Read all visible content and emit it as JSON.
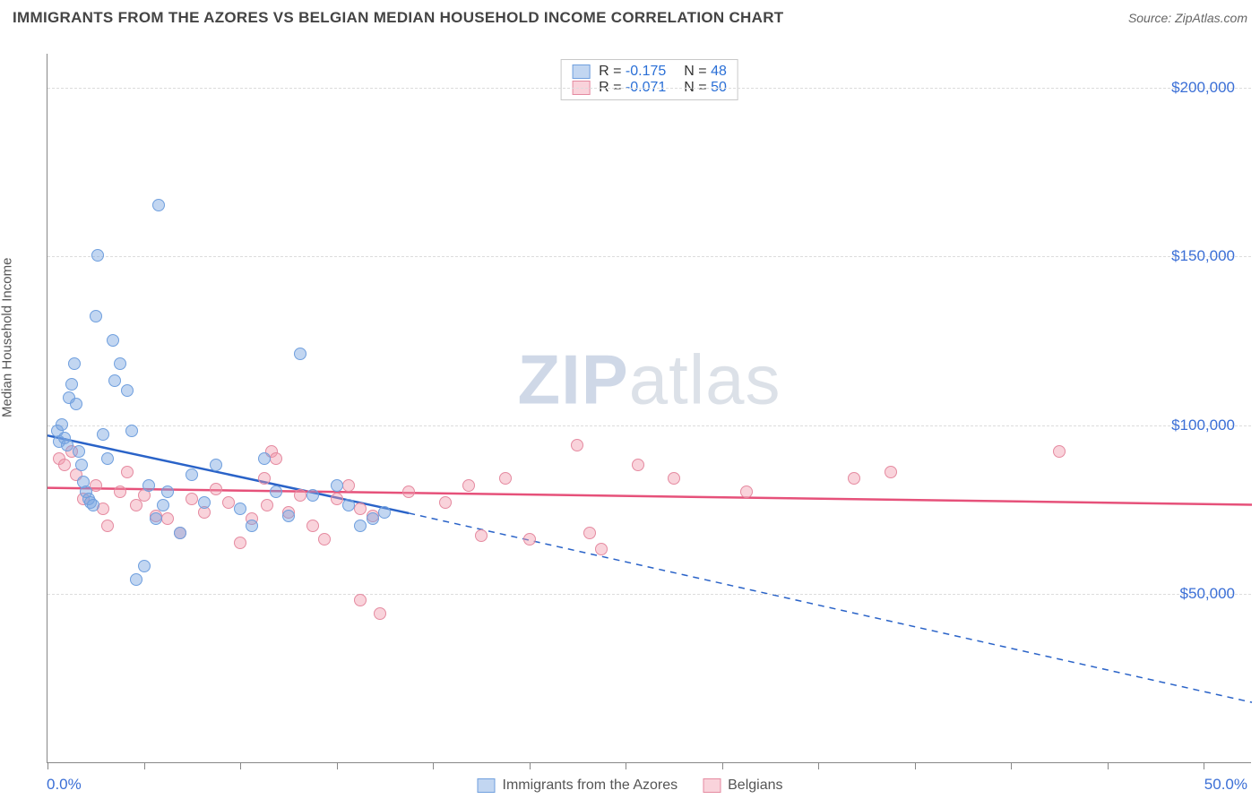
{
  "title": "IMMIGRANTS FROM THE AZORES VS BELGIAN MEDIAN HOUSEHOLD INCOME CORRELATION CHART",
  "source_label": "Source: ZipAtlas.com",
  "watermark": {
    "bold": "ZIP",
    "light": "atlas"
  },
  "chart": {
    "type": "scatter",
    "ylabel": "Median Household Income",
    "xlim": [
      0,
      50
    ],
    "ylim": [
      0,
      210000
    ],
    "x_start_label": "0.0%",
    "x_end_label": "50.0%",
    "x_ticks_pct": [
      0,
      4,
      8,
      12,
      16,
      20,
      24,
      28,
      32,
      36,
      40,
      44,
      48
    ],
    "y_gridlines": [
      50000,
      100000,
      150000,
      200000
    ],
    "y_tick_labels": [
      "$50,000",
      "$100,000",
      "$150,000",
      "$200,000"
    ],
    "background_color": "#ffffff",
    "grid_color": "#dcdcdc",
    "axis_color": "#888888",
    "tick_label_color": "#3b6fd6",
    "series": [
      {
        "key": "azores",
        "label": "Immigrants from the Azores",
        "fill": "rgba(120,165,225,0.45)",
        "stroke": "#6f9fde",
        "trend_color": "#2a63c8",
        "R": "-0.175",
        "N": "48",
        "trend": {
          "x1": 0,
          "y1": 97000,
          "x2": 15,
          "y2": 74000,
          "dash_to_x": 50,
          "dash_to_y": 18000
        },
        "points": [
          [
            0.4,
            98000
          ],
          [
            0.5,
            95000
          ],
          [
            0.6,
            100000
          ],
          [
            0.7,
            96000
          ],
          [
            0.8,
            94000
          ],
          [
            0.9,
            108000
          ],
          [
            1.0,
            112000
          ],
          [
            1.1,
            118000
          ],
          [
            1.2,
            106000
          ],
          [
            1.3,
            92000
          ],
          [
            1.4,
            88000
          ],
          [
            1.5,
            83000
          ],
          [
            1.6,
            80000
          ],
          [
            1.7,
            78000
          ],
          [
            1.8,
            77000
          ],
          [
            1.9,
            76000
          ],
          [
            2.0,
            132000
          ],
          [
            2.1,
            150000
          ],
          [
            2.3,
            97000
          ],
          [
            2.5,
            90000
          ],
          [
            2.7,
            125000
          ],
          [
            2.8,
            113000
          ],
          [
            3.0,
            118000
          ],
          [
            3.3,
            110000
          ],
          [
            3.5,
            98000
          ],
          [
            3.7,
            54000
          ],
          [
            4.0,
            58000
          ],
          [
            4.2,
            82000
          ],
          [
            4.5,
            72000
          ],
          [
            4.6,
            165000
          ],
          [
            4.8,
            76000
          ],
          [
            5.0,
            80000
          ],
          [
            5.5,
            68000
          ],
          [
            6.0,
            85000
          ],
          [
            6.5,
            77000
          ],
          [
            7.0,
            88000
          ],
          [
            8.0,
            75000
          ],
          [
            8.5,
            70000
          ],
          [
            9.0,
            90000
          ],
          [
            9.5,
            80000
          ],
          [
            10.0,
            73000
          ],
          [
            10.5,
            121000
          ],
          [
            11.0,
            79000
          ],
          [
            12.0,
            82000
          ],
          [
            12.5,
            76000
          ],
          [
            13.0,
            70000
          ],
          [
            13.5,
            72000
          ],
          [
            14.0,
            74000
          ]
        ]
      },
      {
        "key": "belgians",
        "label": "Belgians",
        "fill": "rgba(240,150,170,0.42)",
        "stroke": "#e58aa0",
        "trend_color": "#e6517a",
        "R": "-0.071",
        "N": "50",
        "trend": {
          "x1": 0,
          "y1": 81500,
          "x2": 50,
          "y2": 76500
        },
        "points": [
          [
            0.5,
            90000
          ],
          [
            0.7,
            88000
          ],
          [
            1.0,
            92000
          ],
          [
            1.2,
            85000
          ],
          [
            1.5,
            78000
          ],
          [
            2.0,
            82000
          ],
          [
            2.3,
            75000
          ],
          [
            2.5,
            70000
          ],
          [
            3.0,
            80000
          ],
          [
            3.3,
            86000
          ],
          [
            3.7,
            76000
          ],
          [
            4.0,
            79000
          ],
          [
            4.5,
            73000
          ],
          [
            5.0,
            72000
          ],
          [
            5.5,
            68000
          ],
          [
            6.0,
            78000
          ],
          [
            6.5,
            74000
          ],
          [
            7.0,
            81000
          ],
          [
            7.5,
            77000
          ],
          [
            8.0,
            65000
          ],
          [
            8.5,
            72000
          ],
          [
            9.0,
            84000
          ],
          [
            9.1,
            76000
          ],
          [
            9.3,
            92000
          ],
          [
            9.5,
            90000
          ],
          [
            10.0,
            74000
          ],
          [
            10.5,
            79000
          ],
          [
            11.0,
            70000
          ],
          [
            11.5,
            66000
          ],
          [
            12.0,
            78000
          ],
          [
            12.5,
            82000
          ],
          [
            13.0,
            48000
          ],
          [
            13.0,
            75000
          ],
          [
            13.5,
            73000
          ],
          [
            13.8,
            44000
          ],
          [
            15.0,
            80000
          ],
          [
            16.5,
            77000
          ],
          [
            17.5,
            82000
          ],
          [
            18.0,
            67000
          ],
          [
            19.0,
            84000
          ],
          [
            20.0,
            66000
          ],
          [
            22.0,
            94000
          ],
          [
            22.5,
            68000
          ],
          [
            23.0,
            63000
          ],
          [
            24.5,
            88000
          ],
          [
            26.0,
            84000
          ],
          [
            29.0,
            80000
          ],
          [
            33.5,
            84000
          ],
          [
            35.0,
            86000
          ],
          [
            42.0,
            92000
          ]
        ]
      }
    ]
  },
  "legend_top": {
    "R_label": "R =",
    "N_label": "N ="
  }
}
